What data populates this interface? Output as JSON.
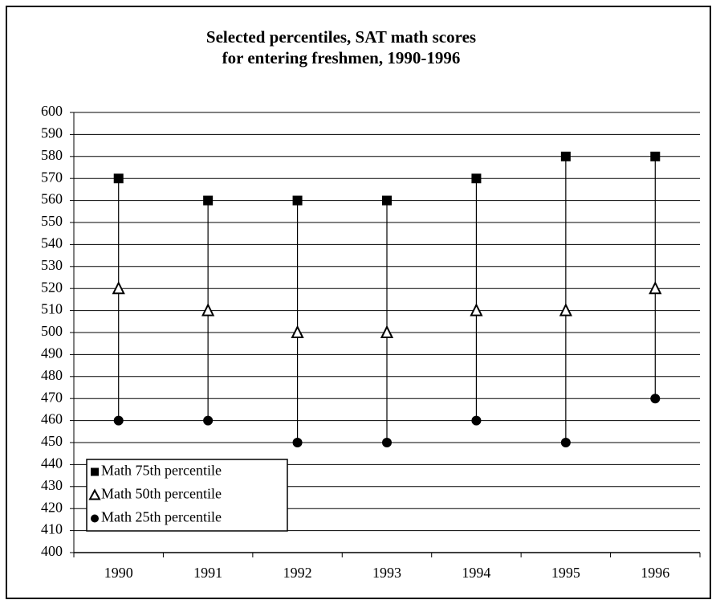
{
  "chart_data": {
    "type": "hilo",
    "title_lines": [
      "Selected percentiles, SAT math scores",
      "for entering freshmen, 1990-1996"
    ],
    "categories": [
      "1990",
      "1991",
      "1992",
      "1993",
      "1994",
      "1995",
      "1996"
    ],
    "series": [
      {
        "name": "Math 75th percentile",
        "color": "#000000",
        "marker": "square",
        "values": [
          570,
          560,
          560,
          560,
          570,
          580,
          580
        ]
      },
      {
        "name": "Math 50th percentile",
        "color": "#000000",
        "marker": "triangle",
        "values": [
          520,
          510,
          500,
          500,
          510,
          510,
          520
        ]
      },
      {
        "name": "Math 25th percentile",
        "color": "#000000",
        "marker": "circle",
        "values": [
          460,
          460,
          450,
          450,
          460,
          450,
          470
        ]
      }
    ],
    "hilo_lines": true,
    "ylim": [
      400,
      600
    ],
    "yticks": [
      400,
      410,
      420,
      430,
      440,
      450,
      460,
      470,
      480,
      490,
      500,
      510,
      520,
      530,
      540,
      550,
      560,
      570,
      580,
      590,
      600
    ],
    "grid": true,
    "legend": "lower left"
  }
}
